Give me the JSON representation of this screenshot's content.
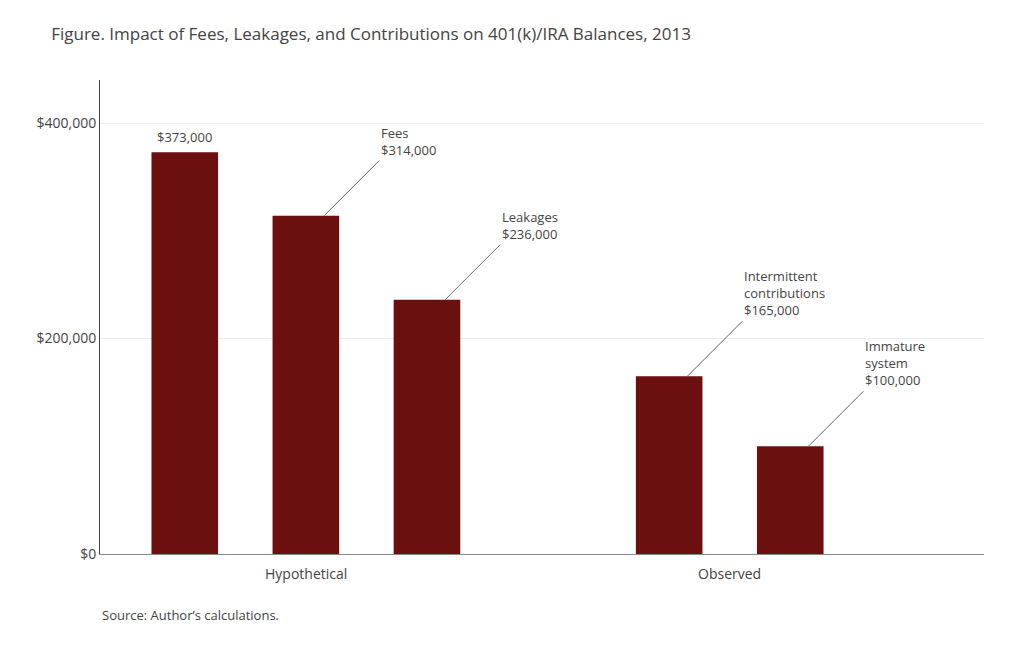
{
  "chart_data": {
    "type": "bar",
    "title": "Figure. Impact of Fees, Leakages, and Contributions on 401(k)/IRA Balances, 2013",
    "categories": [
      null,
      null,
      null,
      null,
      null
    ],
    "values": [
      373000,
      314000,
      236000,
      165000,
      100000
    ],
    "value_labels": [
      "$373,000",
      "Fees\n$314,000",
      "Leakages\n$236,000",
      "Intermittent\ncontributions\n$165,000",
      "Immature\nsystem\n$100,000"
    ],
    "data_labels": true,
    "groups": [
      {
        "name": "Hypothetical",
        "size": 3
      },
      {
        "name": "Observed",
        "size": 2
      }
    ],
    "color": "#6B0F0F",
    "ylim": [
      0,
      440000
    ],
    "yticks": [
      {
        "value": 0,
        "label": "$0"
      },
      {
        "value": 200000,
        "label": "$200,000"
      },
      {
        "value": 400000,
        "label": "$400,000"
      }
    ],
    "grid": true,
    "tick_labels": "y",
    "annotations": [
      "Source: Author’s calculations."
    ]
  }
}
